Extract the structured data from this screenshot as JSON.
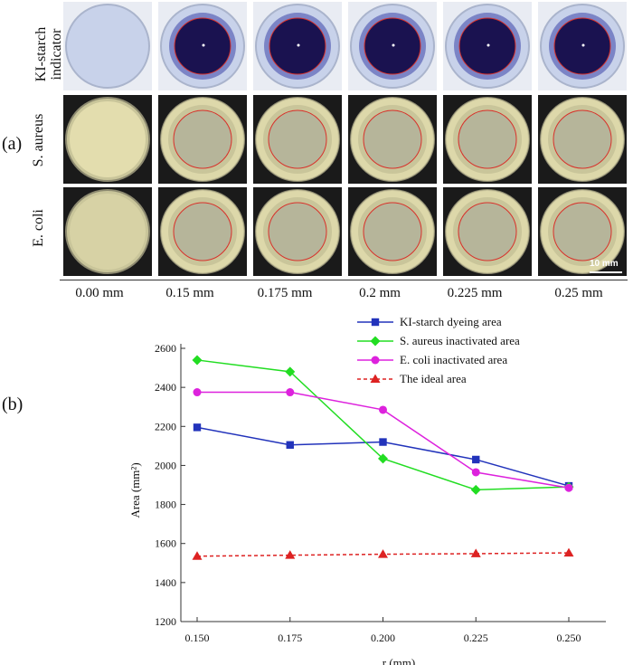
{
  "panel_labels": {
    "a": "(a)",
    "b": "(b)"
  },
  "panel_a": {
    "row_labels": [
      "KI-starch indicator",
      "S. aureus",
      "E. coli"
    ],
    "column_labels": [
      "0.00 mm",
      "0.15 mm",
      "0.175 mm",
      "0.2 mm",
      "0.225 mm",
      "0.25 mm"
    ],
    "scale_bar_label": "10 mm",
    "colors": {
      "ki_dish": "#c8d2ea",
      "ki_stain": "#1a1250",
      "ki_stain_edge": "#5a62b6",
      "bacteria_medium": "#c9c59a",
      "colonies": "#e6dfb0",
      "red_circle": "#d8312b",
      "background": "#1a1a1a"
    }
  },
  "chart_data": {
    "type": "line",
    "x": [
      0.15,
      0.175,
      0.2,
      0.225,
      0.25
    ],
    "x_tick_labels": [
      "0.150",
      "0.175",
      "0.200",
      "0.225",
      "0.250"
    ],
    "xlabel": "r (mm)",
    "ylabel": "Area (mm²)",
    "ylim": [
      1200,
      2600
    ],
    "y_ticks": [
      1200,
      1400,
      1600,
      1800,
      2000,
      2200,
      2400,
      2600
    ],
    "grid": false,
    "legend_position": "top-right",
    "series": [
      {
        "name": "KI-starch dyeing area",
        "color": "#2233bb",
        "marker": "square",
        "dashed": false,
        "values": [
          2195,
          2105,
          2120,
          2030,
          1895
        ]
      },
      {
        "name": "S. aureus inactivated area",
        "color": "#22dd22",
        "marker": "diamond",
        "dashed": false,
        "values": [
          2540,
          2480,
          2035,
          1875,
          1890
        ]
      },
      {
        "name": "E. coli  inactivated area",
        "color": "#dd22dd",
        "marker": "circle",
        "dashed": false,
        "values": [
          2375,
          2375,
          2285,
          1965,
          1885
        ]
      },
      {
        "name": "The ideal area",
        "color": "#dd2222",
        "marker": "triangle",
        "dashed": true,
        "values": [
          1535,
          1540,
          1545,
          1548,
          1552
        ]
      }
    ]
  }
}
